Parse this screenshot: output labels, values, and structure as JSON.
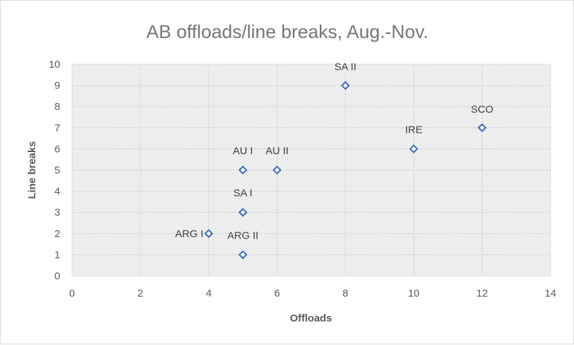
{
  "chart_data": {
    "type": "scatter",
    "title": "AB offloads/line breaks, Aug.-Nov.",
    "xlabel": "Offloads",
    "ylabel": "Line breaks",
    "xlim": [
      0,
      14
    ],
    "ylim": [
      0,
      10
    ],
    "xticks": [
      0,
      2,
      4,
      6,
      8,
      10,
      12,
      14
    ],
    "yticks": [
      0,
      1,
      2,
      3,
      4,
      5,
      6,
      7,
      8,
      9,
      10
    ],
    "grid": true,
    "legend": "none",
    "marker_color": "#4472c4",
    "points": [
      {
        "label": "SA II",
        "x": 8,
        "y": 9
      },
      {
        "label": "SCO",
        "x": 12,
        "y": 7
      },
      {
        "label": "IRE",
        "x": 10,
        "y": 6
      },
      {
        "label": "AU I",
        "x": 5,
        "y": 5
      },
      {
        "label": "AU II",
        "x": 6,
        "y": 5
      },
      {
        "label": "SA I",
        "x": 5,
        "y": 3
      },
      {
        "label": "ARG I",
        "x": 4,
        "y": 2
      },
      {
        "label": "ARG II",
        "x": 5,
        "y": 1
      }
    ]
  }
}
